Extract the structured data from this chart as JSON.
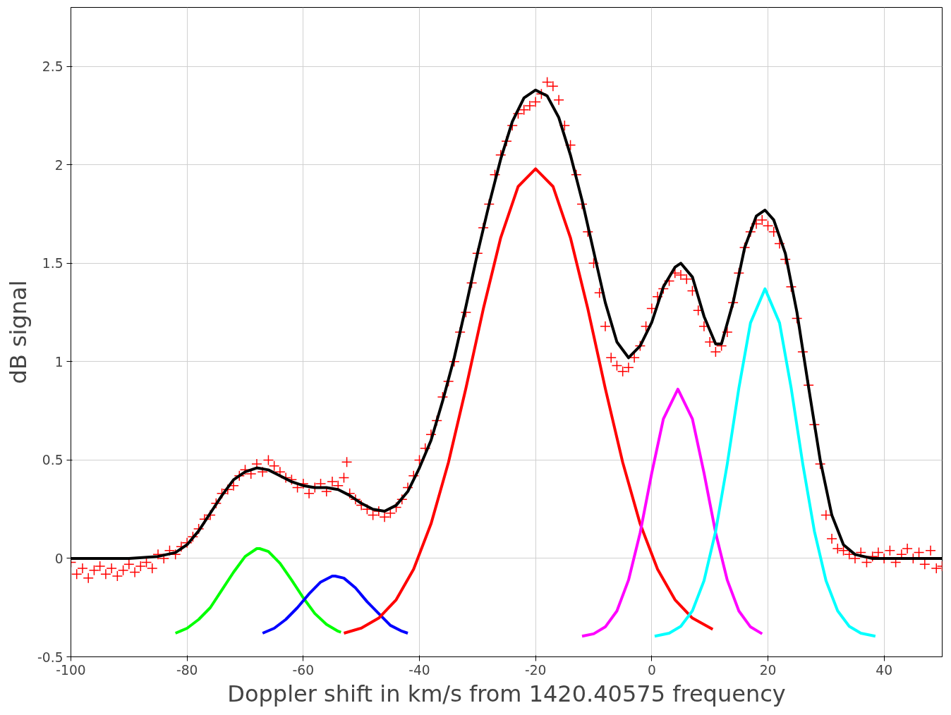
{
  "chart_data": {
    "type": "line",
    "xlabel": "Doppler shift in km/s from 1420.40575 frequency",
    "ylabel": "dB signal",
    "xlim": [
      -100,
      50
    ],
    "ylim": [
      -0.5,
      2.8
    ],
    "xticks": [
      -100,
      -80,
      -60,
      -40,
      -20,
      0,
      20,
      40
    ],
    "yticks": [
      -0.5,
      0,
      0.5,
      1,
      1.5,
      2,
      2.5
    ],
    "grid": true,
    "series": [
      {
        "type": "scatter",
        "marker": "cross",
        "color": "#ff0000",
        "x": [
          -100,
          -99,
          -98,
          -97,
          -96,
          -95,
          -94,
          -93,
          -92,
          -91,
          -90,
          -89,
          -88,
          -87,
          -86,
          -85,
          -84,
          -83,
          -82,
          -81,
          -80,
          -79,
          -78,
          -77,
          -76,
          -75,
          -74,
          -73,
          -72,
          -71,
          -70,
          -69,
          -68,
          -67,
          -66,
          -65,
          -64,
          -63,
          -62,
          -61,
          -60,
          -59,
          -58,
          -57,
          -56,
          -55,
          -54,
          -53,
          -52.5,
          -52,
          -51,
          -50,
          -49,
          -48,
          -47,
          -46,
          -45,
          -44,
          -43,
          -42,
          -41,
          -40,
          -39,
          -38,
          -37,
          -36,
          -35,
          -34,
          -33,
          -32,
          -31,
          -30,
          -29,
          -28,
          -27,
          -26,
          -25,
          -24,
          -23,
          -22,
          -21,
          -20,
          -19,
          -18,
          -17,
          -16,
          -15,
          -14,
          -13,
          -12,
          -11,
          -10,
          -9,
          -8,
          -7,
          -6,
          -5,
          -4,
          -3,
          -2,
          -1,
          0,
          1,
          2,
          3,
          4,
          5,
          6,
          7,
          8,
          9,
          10,
          11,
          12,
          13,
          14,
          15,
          16,
          17,
          18,
          19,
          20,
          21,
          22,
          23,
          24,
          25,
          26,
          27,
          28,
          29,
          30,
          31,
          32,
          33,
          34,
          35,
          36,
          37,
          38,
          39,
          40,
          41,
          42,
          43,
          44,
          45,
          46,
          47,
          48,
          49,
          50
        ],
        "values": [
          -0.02,
          -0.08,
          -0.05,
          -0.1,
          -0.06,
          -0.04,
          -0.08,
          -0.05,
          -0.09,
          -0.06,
          -0.03,
          -0.07,
          -0.04,
          -0.02,
          -0.05,
          0.02,
          0.0,
          0.04,
          0.02,
          0.06,
          0.08,
          0.11,
          0.15,
          0.2,
          0.22,
          0.28,
          0.33,
          0.35,
          0.37,
          0.42,
          0.45,
          0.43,
          0.48,
          0.44,
          0.5,
          0.47,
          0.44,
          0.41,
          0.4,
          0.36,
          0.38,
          0.33,
          0.36,
          0.38,
          0.34,
          0.39,
          0.37,
          0.41,
          0.49,
          0.33,
          0.3,
          0.27,
          0.25,
          0.22,
          0.24,
          0.21,
          0.23,
          0.26,
          0.3,
          0.36,
          0.42,
          0.5,
          0.56,
          0.63,
          0.7,
          0.82,
          0.9,
          1.0,
          1.15,
          1.25,
          1.4,
          1.55,
          1.68,
          1.8,
          1.95,
          2.05,
          2.12,
          2.2,
          2.26,
          2.28,
          2.3,
          2.32,
          2.36,
          2.42,
          2.4,
          2.33,
          2.2,
          2.1,
          1.95,
          1.8,
          1.66,
          1.5,
          1.35,
          1.18,
          1.02,
          0.98,
          0.95,
          0.97,
          1.02,
          1.08,
          1.18,
          1.27,
          1.33,
          1.37,
          1.41,
          1.45,
          1.44,
          1.42,
          1.36,
          1.26,
          1.18,
          1.1,
          1.05,
          1.08,
          1.15,
          1.3,
          1.45,
          1.58,
          1.66,
          1.7,
          1.72,
          1.69,
          1.66,
          1.6,
          1.52,
          1.38,
          1.22,
          1.05,
          0.88,
          0.68,
          0.48,
          0.22,
          0.1,
          0.05,
          0.04,
          0.02,
          0.0,
          0.03,
          -0.02,
          0.01,
          0.03,
          0.0,
          0.04,
          -0.02,
          0.02,
          0.05,
          0.0,
          0.03,
          -0.03,
          0.04,
          -0.05,
          -0.04
        ]
      },
      {
        "color": "#00ff00",
        "x": [
          -82,
          -80,
          -78,
          -76,
          -74,
          -72,
          -70,
          -68,
          -67.5,
          -66,
          -64,
          -62,
          -60,
          -58,
          -56,
          -54,
          -53.5
        ],
        "values": [
          -0.38,
          -0.355,
          -0.31,
          -0.25,
          -0.16,
          -0.07,
          0.01,
          0.05,
          0.05,
          0.035,
          -0.025,
          -0.11,
          -0.2,
          -0.28,
          -0.335,
          -0.37,
          -0.375
        ]
      },
      {
        "color": "#0000ff",
        "x": [
          -67,
          -65,
          -63,
          -61,
          -59,
          -57,
          -55,
          -54.5,
          -53,
          -51,
          -49,
          -47,
          -45,
          -43,
          -42
        ],
        "values": [
          -0.38,
          -0.355,
          -0.31,
          -0.25,
          -0.18,
          -0.12,
          -0.09,
          -0.09,
          -0.1,
          -0.15,
          -0.22,
          -0.28,
          -0.34,
          -0.37,
          -0.38
        ]
      },
      {
        "color": "#ff0000",
        "x": [
          -53,
          -50,
          -47,
          -44,
          -41,
          -38,
          -35,
          -32,
          -29,
          -26,
          -23,
          -20,
          -17,
          -14,
          -11,
          -8,
          -5,
          -2,
          1,
          4,
          7,
          10.5
        ],
        "values": [
          -0.38,
          -0.354,
          -0.303,
          -0.21,
          -0.055,
          0.176,
          0.488,
          0.864,
          1.268,
          1.63,
          1.89,
          1.98,
          1.89,
          1.63,
          1.268,
          0.864,
          0.488,
          0.176,
          -0.055,
          -0.21,
          -0.303,
          -0.36
        ]
      },
      {
        "color": "#ff00ff",
        "x": [
          -12,
          -10,
          -8,
          -6,
          -4,
          -2,
          0,
          2,
          4.5,
          7,
          9,
          11,
          13,
          15,
          17,
          19
        ],
        "values": [
          -0.395,
          -0.383,
          -0.348,
          -0.267,
          -0.11,
          0.13,
          0.434,
          0.709,
          0.86,
          0.709,
          0.434,
          0.13,
          -0.11,
          -0.267,
          -0.348,
          -0.383
        ]
      },
      {
        "color": "#00ffff",
        "x": [
          0.5,
          3,
          5,
          7,
          9,
          11,
          13,
          15,
          17,
          19.5,
          22,
          24,
          26,
          28,
          30,
          32,
          34,
          36,
          38.5
        ],
        "values": [
          -0.395,
          -0.38,
          -0.345,
          -0.266,
          -0.113,
          0.138,
          0.48,
          0.866,
          1.197,
          1.37,
          1.197,
          0.866,
          0.48,
          0.138,
          -0.113,
          -0.266,
          -0.345,
          -0.38,
          -0.395
        ]
      },
      {
        "color": "#000000",
        "x": [
          -100,
          -90,
          -85,
          -82,
          -80,
          -78,
          -76,
          -74,
          -72,
          -70,
          -68,
          -66,
          -64,
          -62,
          -60,
          -58,
          -56,
          -54,
          -52,
          -50,
          -48,
          -46,
          -44,
          -42,
          -40,
          -38,
          -36,
          -34,
          -32,
          -30,
          -28,
          -26,
          -24,
          -22,
          -20,
          -18,
          -16,
          -14,
          -12,
          -10,
          -8,
          -6,
          -4,
          -2,
          0,
          2,
          4,
          5,
          7,
          9,
          11,
          12,
          14,
          16,
          18,
          19.5,
          21,
          23,
          25,
          27,
          29,
          31,
          33,
          35,
          38,
          50
        ],
        "values": [
          0.0,
          0.0,
          0.01,
          0.03,
          0.07,
          0.14,
          0.23,
          0.32,
          0.4,
          0.44,
          0.46,
          0.45,
          0.42,
          0.39,
          0.37,
          0.36,
          0.36,
          0.35,
          0.32,
          0.28,
          0.25,
          0.24,
          0.27,
          0.34,
          0.46,
          0.6,
          0.8,
          1.02,
          1.28,
          1.55,
          1.8,
          2.03,
          2.22,
          2.34,
          2.38,
          2.35,
          2.24,
          2.05,
          1.82,
          1.56,
          1.3,
          1.1,
          1.02,
          1.08,
          1.2,
          1.38,
          1.48,
          1.5,
          1.43,
          1.23,
          1.09,
          1.09,
          1.3,
          1.58,
          1.74,
          1.77,
          1.72,
          1.55,
          1.25,
          0.87,
          0.5,
          0.22,
          0.07,
          0.02,
          0.0,
          0.0
        ]
      }
    ]
  }
}
